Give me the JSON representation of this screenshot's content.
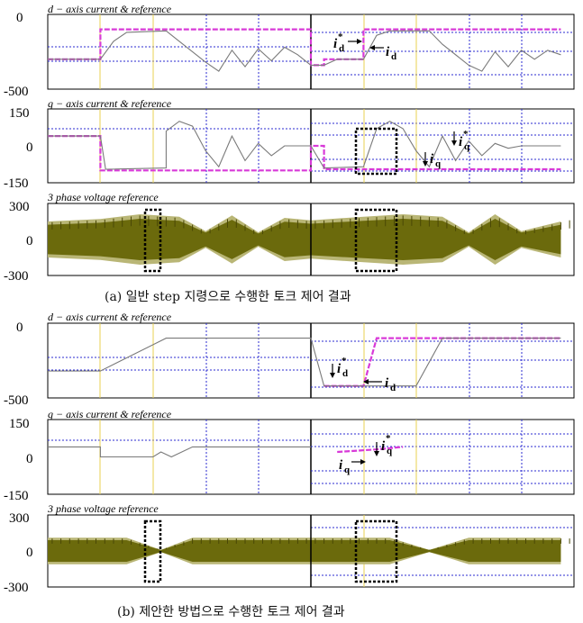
{
  "colors": {
    "reference": "#d83ad8",
    "actual": "#7a7a7a",
    "voltage_fill": "#6b6a0c",
    "voltage_light": "#b9b676",
    "grid_blue": "#2b2bd0",
    "marker_yellow": "#e8d250",
    "box": "#000000"
  },
  "captions": {
    "a": "(a) 일반 step 지령으로 수행한 토크 제어 결과",
    "b": "(b) 제안한 방법으로 수행한 토크 제어 결과"
  },
  "annotations": {
    "a_d_ref": "i",
    "a_d_ref_sup": "*",
    "a_d_ref_sub": "d",
    "a_d_act": "i",
    "a_d_act_sub": "d",
    "a_q_ref": "i",
    "a_q_ref_sup": "*",
    "a_q_ref_sub": "q",
    "a_q_act": "i",
    "a_q_act_sub": "q",
    "b_d_ref": "i",
    "b_d_ref_sup": "*",
    "b_d_ref_sub": "d",
    "b_d_act": "i",
    "b_d_act_sub": "d",
    "b_q_act": "i",
    "b_q_act_sub": "q",
    "b_q_ref": "i",
    "b_q_ref_sup": "*",
    "b_q_ref_sub": "q"
  },
  "chart_data": [
    {
      "id": "a1",
      "type": "line",
      "title": "d − axis current & reference",
      "yticks": [
        "0",
        "-500"
      ],
      "ylim": [
        -500,
        0
      ],
      "series": [
        {
          "name": "reference",
          "x": [
            0,
            0.2,
            0.2,
            0.45,
            0.45,
            1.0,
            1.0,
            1.05,
            1.05,
            1.2,
            1.2,
            1.95
          ],
          "y": [
            -300,
            -300,
            -100,
            -100,
            -100,
            -100,
            -340,
            -340,
            -300,
            -300,
            -100,
            -100
          ]
        },
        {
          "name": "actual",
          "x": [
            0,
            0.2,
            0.25,
            0.3,
            0.45,
            0.5,
            0.6,
            0.65,
            0.7,
            0.75,
            0.8,
            0.85,
            0.9,
            0.95,
            1.0,
            1.05,
            1.1,
            1.2,
            1.25,
            1.3,
            1.45,
            1.5,
            1.6,
            1.65,
            1.7,
            1.75,
            1.8,
            1.85,
            1.9,
            1.95
          ],
          "y": [
            -300,
            -300,
            -180,
            -120,
            -110,
            -180,
            -320,
            -380,
            -240,
            -350,
            -230,
            -310,
            -220,
            -270,
            -340,
            -340,
            -300,
            -300,
            -140,
            -110,
            -110,
            -200,
            -340,
            -380,
            -250,
            -350,
            -240,
            -300,
            -240,
            -270
          ]
        }
      ]
    },
    {
      "id": "a2",
      "type": "line",
      "title": "q − axis current & reference",
      "yticks": [
        "150",
        "0",
        "-150"
      ],
      "ylim": [
        -150,
        150
      ],
      "series": [
        {
          "name": "reference",
          "x": [
            0,
            0.2,
            0.2,
            1.0,
            1.0,
            1.05,
            1.05,
            1.95
          ],
          "y": [
            40,
            40,
            -100,
            -100,
            0,
            0,
            -95,
            -95
          ]
        },
        {
          "name": "actual",
          "x": [
            0,
            0.2,
            0.22,
            0.45,
            0.45,
            0.5,
            0.55,
            0.6,
            0.65,
            0.7,
            0.75,
            0.8,
            0.85,
            0.9,
            1.0,
            1.05,
            1.2,
            1.25,
            1.3,
            1.35,
            1.4,
            1.45,
            1.5,
            1.55,
            1.6,
            1.65,
            1.7,
            1.75,
            1.8,
            1.95
          ],
          "y": [
            40,
            40,
            -95,
            -90,
            60,
            100,
            80,
            -20,
            -85,
            40,
            -60,
            10,
            -40,
            0,
            0,
            -90,
            -85,
            70,
            100,
            70,
            -20,
            -85,
            40,
            -60,
            20,
            -40,
            10,
            -10,
            0,
            0
          ]
        }
      ]
    },
    {
      "id": "a3",
      "type": "area",
      "title": "3 phase voltage reference",
      "yticks": [
        "300",
        "0",
        "-300"
      ],
      "ylim": [
        -300,
        300
      ],
      "envelope": {
        "x": [
          0,
          0.2,
          0.35,
          0.5,
          0.6,
          0.7,
          0.8,
          0.9,
          1.0,
          1.2,
          1.35,
          1.5,
          1.6,
          1.7,
          1.8,
          1.95
        ],
        "y": [
          150,
          170,
          210,
          190,
          70,
          200,
          60,
          180,
          160,
          190,
          210,
          190,
          60,
          210,
          70,
          150
        ]
      }
    },
    {
      "id": "b1",
      "type": "line",
      "title": "d − axis current & reference",
      "yticks": [
        "0",
        "-500"
      ],
      "ylim": [
        -500,
        0
      ],
      "series": [
        {
          "name": "reference",
          "x": [
            1.05,
            1.2,
            1.25,
            1.95
          ],
          "y": [
            -420,
            -420,
            -100,
            -100
          ]
        },
        {
          "name": "actual",
          "x": [
            0,
            0.2,
            0.2,
            0.45,
            0.55,
            1.0,
            1.05,
            1.4,
            1.5,
            1.95
          ],
          "y": [
            -320,
            -320,
            -320,
            -100,
            -100,
            -100,
            -420,
            -420,
            -100,
            -100
          ]
        }
      ]
    },
    {
      "id": "b2",
      "type": "line",
      "title": "q − axis current & reference",
      "yticks": [
        "150",
        "0",
        "-150"
      ],
      "ylim": [
        -150,
        150
      ],
      "series": [
        {
          "name": "reference",
          "x": [
            1.1,
            1.25,
            1.35
          ],
          "y": [
            20,
            30,
            40
          ]
        },
        {
          "name": "actual",
          "x": [
            0,
            0.2,
            0.2,
            0.4,
            0.43,
            0.47,
            0.55,
            1.0
          ],
          "y": [
            40,
            40,
            0,
            0,
            20,
            0,
            40,
            40
          ]
        }
      ]
    },
    {
      "id": "b3",
      "type": "area",
      "title": "3 phase voltage reference",
      "yticks": [
        "300",
        "0",
        "-300"
      ],
      "ylim": [
        -300,
        300
      ],
      "envelope": {
        "x": [
          0,
          0.3,
          0.43,
          0.55,
          1.0,
          1.2,
          1.3,
          1.45,
          1.6,
          1.95
        ],
        "y": [
          110,
          110,
          10,
          110,
          110,
          110,
          110,
          10,
          110,
          110
        ]
      }
    }
  ]
}
